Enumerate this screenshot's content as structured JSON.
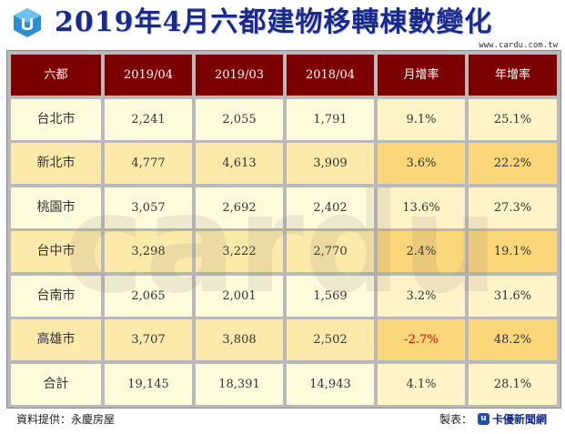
{
  "title": "2019年4月六都建物移轉棟數變化",
  "watermark_url": "www.cardu.com.tw",
  "columns": [
    "六都",
    "2019/04",
    "2019/03",
    "2018/04",
    "月增率",
    "年增率"
  ],
  "rows": [
    {
      "name": "台北市",
      "v2019_04": "2,241",
      "v2019_03": "2,055",
      "v2018_04": "1,791",
      "mom": "9.1%",
      "yoy": "25.1%"
    },
    {
      "name": "新北市",
      "v2019_04": "4,777",
      "v2019_03": "4,613",
      "v2018_04": "3,909",
      "mom": "3.6%",
      "yoy": "22.2%"
    },
    {
      "name": "桃園市",
      "v2019_04": "3,057",
      "v2019_03": "2,692",
      "v2018_04": "2,402",
      "mom": "13.6%",
      "yoy": "27.3%"
    },
    {
      "name": "台中市",
      "v2019_04": "3,298",
      "v2019_03": "3,222",
      "v2018_04": "2,770",
      "mom": "2.4%",
      "yoy": "19.1%"
    },
    {
      "name": "台南市",
      "v2019_04": "2,065",
      "v2019_03": "2,001",
      "v2018_04": "1,569",
      "mom": "3.2%",
      "yoy": "31.6%"
    },
    {
      "name": "高雄市",
      "v2019_04": "3,707",
      "v2019_03": "3,808",
      "v2018_04": "2,502",
      "mom": "-2.7%",
      "yoy": "48.2%"
    },
    {
      "name": "合計",
      "v2019_04": "19,145",
      "v2019_03": "18,391",
      "v2018_04": "14,943",
      "mom": "4.1%",
      "yoy": "28.1%"
    }
  ],
  "footer": {
    "source": "資料提供：永慶房屋",
    "maker_label": "製表：",
    "maker_badge": "u",
    "maker_brand": "卡優新聞網"
  },
  "colors": {
    "header_bg": "#7d0000",
    "row_light": "#fffbdc",
    "row_dark": "#fde9a9",
    "negative": "#e00000",
    "title": "#1a2a8c"
  }
}
